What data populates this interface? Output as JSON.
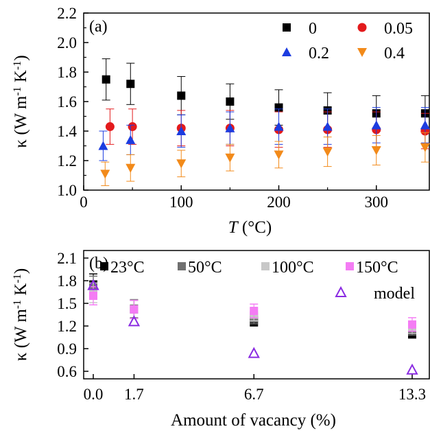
{
  "chart_data": [
    {
      "type": "scatter",
      "panel_label": "(a)",
      "xlabel_italic": "T",
      "xlabel_rest": " (°C)",
      "ylabel": "κ (W m-1 K-1)",
      "xlim": [
        0,
        355
      ],
      "ylim": [
        1.0,
        2.2
      ],
      "xticks": [
        0,
        100,
        200,
        300
      ],
      "yticks": [
        1.0,
        1.2,
        1.4,
        1.6,
        1.8,
        2.0,
        2.2
      ],
      "legend_placement": "top-right",
      "series": [
        {
          "name": "0",
          "marker": "square",
          "color": "#000000",
          "x": [
            23,
            48,
            100,
            150,
            200,
            250,
            300,
            350
          ],
          "y": [
            1.75,
            1.72,
            1.64,
            1.6,
            1.56,
            1.54,
            1.52,
            1.52
          ],
          "err": [
            0.14,
            0.14,
            0.13,
            0.12,
            0.12,
            0.12,
            0.12,
            0.12
          ]
        },
        {
          "name": "0.05",
          "marker": "circle",
          "color": "#e31a1c",
          "x": [
            27,
            50,
            100,
            150,
            200,
            250,
            300,
            350
          ],
          "y": [
            1.43,
            1.43,
            1.42,
            1.42,
            1.41,
            1.41,
            1.41,
            1.4
          ],
          "err": [
            0.12,
            0.12,
            0.12,
            0.12,
            0.12,
            0.12,
            0.12,
            0.12
          ]
        },
        {
          "name": "0.2",
          "marker": "triangle-up",
          "color": "#1c3ce0",
          "x": [
            20,
            48,
            100,
            150,
            200,
            250,
            300,
            350
          ],
          "y": [
            1.3,
            1.34,
            1.4,
            1.42,
            1.43,
            1.43,
            1.44,
            1.44
          ],
          "err": [
            0.1,
            0.1,
            0.11,
            0.11,
            0.12,
            0.12,
            0.12,
            0.12
          ]
        },
        {
          "name": "0.4",
          "marker": "triangle-down",
          "color": "#f28a1a",
          "x": [
            22,
            48,
            100,
            150,
            200,
            250,
            300,
            350
          ],
          "y": [
            1.11,
            1.15,
            1.18,
            1.22,
            1.24,
            1.26,
            1.27,
            1.29
          ],
          "err": [
            0.08,
            0.09,
            0.09,
            0.09,
            0.09,
            0.1,
            0.1,
            0.1
          ]
        }
      ]
    },
    {
      "type": "scatter",
      "panel_label": "(b)",
      "xlabel": "Amount of vacancy (%)",
      "ylabel": "κ (W m-1 K-1)",
      "xlim": [
        -0.6,
        13.3
      ],
      "ylim": [
        0.5,
        2.2
      ],
      "xticks": [
        0.0,
        1.7,
        6.7,
        13.3
      ],
      "xtick_labels": [
        "0.0",
        "1.7",
        "6.7",
        "13.3"
      ],
      "yticks": [
        0.6,
        0.9,
        1.2,
        1.5,
        1.8,
        2.1
      ],
      "series": [
        {
          "name": "23°C",
          "marker": "square",
          "color": "#000000",
          "x": [
            0.0,
            1.7,
            6.7,
            13.3
          ],
          "y": [
            1.75,
            1.42,
            1.26,
            1.1
          ],
          "err": [
            0.14,
            0.12,
            0.06,
            0.06
          ]
        },
        {
          "name": "50°C",
          "marker": "square",
          "color": "#707070",
          "x": [
            0.0,
            1.7,
            6.7,
            13.3
          ],
          "y": [
            1.72,
            1.43,
            1.3,
            1.15
          ],
          "err": [
            0.14,
            0.12,
            0.07,
            0.07
          ]
        },
        {
          "name": "100°C",
          "marker": "square",
          "color": "#c8c8c8",
          "x": [
            0.0,
            1.7,
            6.7,
            13.3
          ],
          "y": [
            1.64,
            1.42,
            1.35,
            1.18
          ],
          "err": [
            0.13,
            0.12,
            0.08,
            0.08
          ]
        },
        {
          "name": "150°C",
          "marker": "square",
          "color": "#f47cf4",
          "x": [
            0.0,
            1.7,
            6.7,
            13.3
          ],
          "y": [
            1.6,
            1.42,
            1.4,
            1.22
          ],
          "err": [
            0.12,
            0.12,
            0.09,
            0.09
          ]
        },
        {
          "name": "model",
          "marker": "triangle-open",
          "color": "#8a2be2",
          "x": [
            0.0,
            1.7,
            6.7,
            13.3
          ],
          "y": [
            1.74,
            1.26,
            0.84,
            0.62
          ],
          "err": null
        }
      ]
    }
  ]
}
